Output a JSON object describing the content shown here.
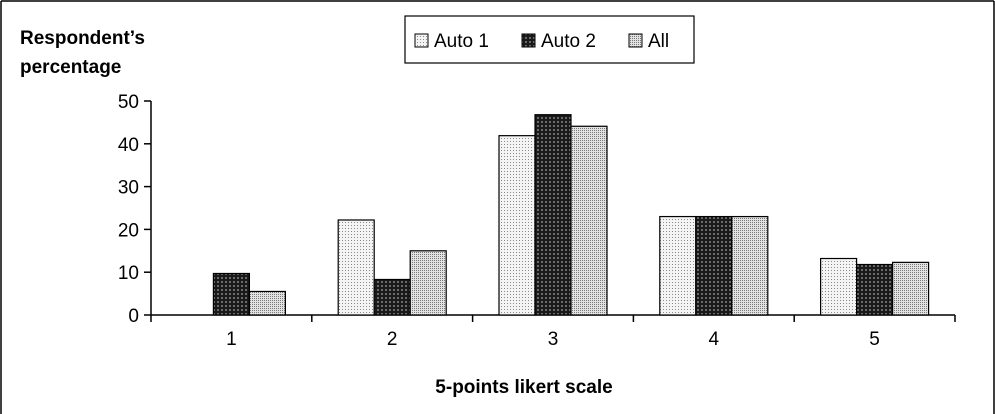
{
  "chart_data": {
    "type": "bar",
    "categories": [
      "1",
      "2",
      "3",
      "4",
      "5"
    ],
    "series": [
      {
        "name": "Auto 1",
        "values": [
          0,
          22.2,
          41.9,
          23.0,
          13.2
        ]
      },
      {
        "name": "Auto 2",
        "values": [
          9.7,
          8.3,
          46.8,
          23.0,
          11.8
        ]
      },
      {
        "name": "All",
        "values": [
          5.5,
          15.0,
          44.1,
          23.0,
          12.3
        ]
      }
    ],
    "ylabel_line1": "Respondent’s",
    "ylabel_line2": "percentage",
    "xlabel": "5-points likert scale",
    "ylim": [
      0,
      50
    ],
    "yticks": [
      "0",
      "10",
      "20",
      "30",
      "40",
      "50"
    ],
    "grid": false,
    "legend_position": "top-center",
    "colors": {
      "bar_stroke": "#000000",
      "background": "#ffffff"
    },
    "patterns": [
      "light-dots",
      "dark-grid",
      "medium-dots"
    ]
  }
}
